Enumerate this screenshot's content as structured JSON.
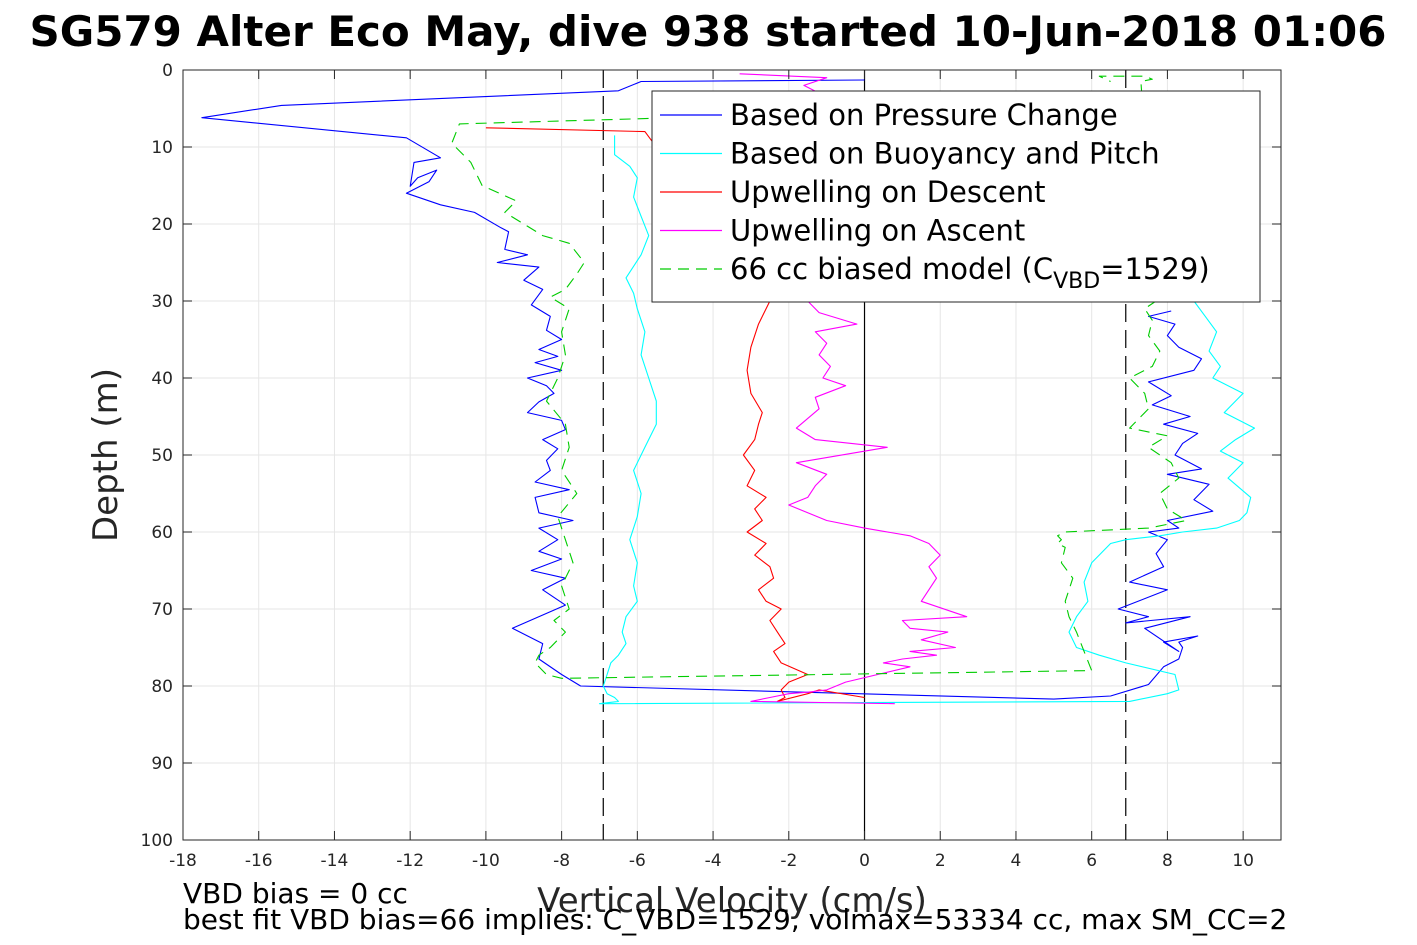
{
  "chart_data": {
    "type": "line",
    "title": "SG579 Alter Eco May, dive 938 started 10-Jun-2018 01:06",
    "xlabel": "Vertical Velocity (cm/s)",
    "ylabel": "Depth (m)",
    "xlim": [
      -18,
      11
    ],
    "ylim": [
      0,
      100
    ],
    "y_reversed": true,
    "grid": true,
    "x_ticks": [
      -18,
      -16,
      -14,
      -12,
      -10,
      -8,
      -6,
      -4,
      -2,
      0,
      2,
      4,
      6,
      8,
      10
    ],
    "y_ticks": [
      0,
      10,
      20,
      30,
      40,
      50,
      60,
      70,
      80,
      90,
      100
    ],
    "legend_position": "top-right",
    "vertical_lines": [
      {
        "x": 0,
        "style": "solid",
        "color": "#000000"
      },
      {
        "x": -6.9,
        "style": "dashed",
        "color": "#000000"
      },
      {
        "x": 6.9,
        "style": "dashed",
        "color": "#000000"
      }
    ],
    "series": [
      {
        "name": "Based on Pressure Change",
        "color": "#0000ff",
        "dash": "",
        "x": [
          0,
          -5.9,
          -6.5,
          -15.4,
          -17.5,
          -12.1,
          -11.2,
          -11.9,
          -12.0,
          -11.8,
          -11.3,
          -11.5,
          -12.1,
          -11.2,
          -10.3,
          -9.6,
          -9.4,
          -9.5,
          -8.9,
          -9.7,
          -8.6,
          -9.0,
          -8.5,
          -8.8,
          -8.3,
          -8.4,
          -8.0,
          -8.6,
          -8.1,
          -8.7,
          -8.0,
          -8.9,
          -8.4,
          -8.2,
          -8.6,
          -8.9,
          -8.0,
          -7.9,
          -8.5,
          -8.1,
          -8.4,
          -8.3,
          -8.7,
          -7.8,
          -8.7,
          -8.6,
          -7.7,
          -8.6,
          -8.1,
          -8.6,
          -8.0,
          -8.8,
          -7.9,
          -8.5,
          -7.9,
          -9.3,
          -8.5,
          -8.6,
          -8.0,
          -7.5,
          5.0,
          6.5,
          7.5,
          7.9,
          8.3,
          8.4,
          8.3,
          8.8,
          7.9,
          8.3,
          7.4,
          8.6,
          6.9,
          7.5,
          6.7,
          8.0,
          7.0,
          7.9,
          7.7,
          8.0,
          7.5,
          8.3,
          8.0,
          9.2,
          8.7,
          9.1,
          8.0,
          8.9,
          8.2,
          8.4,
          8.8,
          7.9,
          8.6,
          7.6,
          8.1,
          7.5,
          8.7,
          8.9,
          8.3,
          8.0,
          8.2,
          7.5,
          8.1
        ],
        "y": [
          1.3,
          1.5,
          2.7,
          4.6,
          6.2,
          8.8,
          11.4,
          12.0,
          15.1,
          14.0,
          13.0,
          14.5,
          16.0,
          17.5,
          18.5,
          20.5,
          21.0,
          23.3,
          24.0,
          25.0,
          25.6,
          27.3,
          28.5,
          30.5,
          32.0,
          33.8,
          35.0,
          36.3,
          37.2,
          38.0,
          39.0,
          40.0,
          41.0,
          42.0,
          43.1,
          44.5,
          45.5,
          46.7,
          48.0,
          49.2,
          50.7,
          52.0,
          53.5,
          54.5,
          55.5,
          57.5,
          58.5,
          59.5,
          61.0,
          62.5,
          63.5,
          65.0,
          66.0,
          67.5,
          69.5,
          72.5,
          74.5,
          76.5,
          78.5,
          80.0,
          81.7,
          81.3,
          79.8,
          77.5,
          76.5,
          75.0,
          74.3,
          73.5,
          74.3,
          75.5,
          72.5,
          71.0,
          71.8,
          71.0,
          70.0,
          67.5,
          66.5,
          64.5,
          62.8,
          61.0,
          60.0,
          59.5,
          58.5,
          57.3,
          55.8,
          53.8,
          52.5,
          51.8,
          50.0,
          48.5,
          47.2,
          46.0,
          45.0,
          43.5,
          42.3,
          40.5,
          39.0,
          37.5,
          36.0,
          34.5,
          33.0,
          32.0,
          31.3
        ]
      },
      {
        "name": "Based on Buoyancy and Pitch",
        "color": "#00ffff",
        "dash": "",
        "x": [
          -6.6,
          -6.6,
          -6.2,
          -6.0,
          -6.1,
          -5.9,
          -5.7,
          -5.9,
          -6.3,
          -6.1,
          -6.0,
          -5.8,
          -5.9,
          -5.7,
          -5.5,
          -5.5,
          -5.8,
          -6.1,
          -5.9,
          -6.0,
          -6.2,
          -6.0,
          -6.1,
          -6.0,
          -6.3,
          -6.4,
          -6.3,
          -6.5,
          -6.7,
          -6.8,
          -6.9,
          -6.8,
          -6.6,
          -6.5,
          -7.0,
          7.0,
          8.0,
          8.3,
          8.2,
          6.9,
          6.2,
          5.6,
          5.4,
          5.6,
          5.9,
          5.8,
          6.0,
          6.5,
          6.9,
          7.8,
          8.4,
          9.3,
          9.9,
          10.1,
          10.2,
          9.6,
          10.0,
          9.4,
          9.8,
          10.3,
          9.5,
          10.0,
          9.2,
          9.4,
          9.1,
          9.3,
          9.0,
          8.7
        ],
        "y": [
          8.5,
          11.0,
          12.5,
          14.0,
          16.5,
          19.0,
          21.5,
          24.0,
          27.0,
          29.0,
          31.0,
          34.0,
          37.0,
          40.0,
          43.0,
          46.0,
          49.0,
          52.0,
          55.0,
          58.0,
          61.0,
          64.0,
          67.0,
          69.0,
          71.0,
          73.0,
          74.5,
          76.0,
          77.0,
          78.5,
          80.0,
          81.0,
          81.5,
          82.0,
          82.3,
          82.0,
          81.0,
          80.5,
          78.5,
          77.0,
          76.0,
          75.0,
          73.0,
          71.0,
          69.0,
          66.5,
          64.0,
          61.5,
          61.0,
          60.5,
          60.0,
          59.5,
          58.5,
          57.5,
          55.5,
          53.0,
          51.0,
          49.5,
          48.0,
          46.5,
          44.5,
          42.0,
          40.0,
          38.5,
          36.5,
          34.0,
          32.0,
          30.0
        ]
      },
      {
        "name": "Upwelling on Descent",
        "color": "#ff0000",
        "dash": "",
        "x": [
          -10.0,
          -5.8,
          -2.5,
          -2.8,
          -3.0,
          -3.1,
          -3.0,
          -2.7,
          -2.8,
          -2.9,
          -3.2,
          -2.9,
          -3.1,
          -2.6,
          -2.9,
          -2.7,
          -3.1,
          -2.6,
          -2.9,
          -2.5,
          -2.4,
          -2.8,
          -2.6,
          -2.2,
          -2.5,
          -2.3,
          -2.1,
          -2.4,
          -2.2,
          -1.5,
          -2.0,
          -2.2,
          -2.1,
          -2.3,
          -1.5,
          -1.2,
          0.0
        ],
        "y": [
          7.5,
          8.0,
          30.0,
          33.0,
          36.0,
          39.0,
          42.0,
          44.5,
          46.0,
          48.0,
          50.0,
          52.0,
          54.0,
          55.5,
          57.0,
          58.5,
          60.0,
          61.5,
          63.0,
          64.5,
          66.0,
          67.5,
          69.0,
          70.0,
          71.5,
          73.0,
          74.5,
          75.5,
          77.0,
          78.5,
          79.5,
          80.5,
          81.5,
          82.0,
          81.0,
          80.5,
          81.5
        ]
      },
      {
        "name": "Upwelling on Ascent",
        "color": "#ff00ff",
        "dash": "",
        "x": [
          -3.3,
          -1.0,
          -1.6,
          -1.2,
          -1.1,
          -1.5,
          -1.2,
          -0.2,
          -1.3,
          -1.0,
          -1.2,
          -0.9,
          -1.1,
          -0.5,
          -1.3,
          -1.2,
          -1.8,
          -1.3,
          0.6,
          -1.8,
          -1.0,
          -1.3,
          -1.5,
          -2.0,
          -1.0,
          0.0,
          1.2,
          1.7,
          2.0,
          1.7,
          1.9,
          1.5,
          2.7,
          1.0,
          1.2,
          2.2,
          1.5,
          2.4,
          1.2,
          1.9,
          1.0,
          0.5,
          1.2,
          -0.5,
          -1.0,
          -1.5,
          -2.0,
          -2.5,
          -3.0,
          0.8
        ],
        "y": [
          0.5,
          1.0,
          2.0,
          3.0,
          3.5,
          30.0,
          31.5,
          33.0,
          34.0,
          35.5,
          37.0,
          38.5,
          40.0,
          41.0,
          42.5,
          44.0,
          46.5,
          48.0,
          49.0,
          51.0,
          52.5,
          54.0,
          55.5,
          56.5,
          58.5,
          59.5,
          60.5,
          61.5,
          63.0,
          64.5,
          66.0,
          69.0,
          71.0,
          71.5,
          72.5,
          73.0,
          74.0,
          75.0,
          75.5,
          76.0,
          76.5,
          77.0,
          77.5,
          79.5,
          80.5,
          80.8,
          81.0,
          81.5,
          82.0,
          82.3
        ]
      },
      {
        "name": "66 cc biased model",
        "legend_label": {
          "prefix": "66 cc biased model (C",
          "subscript": "VBD",
          "suffix": "=1529)"
        },
        "color": "#00cc00",
        "dash": "11 7",
        "x": [
          0,
          -10.7,
          -10.9,
          -10.4,
          -10.1,
          -9.2,
          -9.5,
          -9.0,
          -8.5,
          -7.8,
          -7.4,
          -7.6,
          -7.9,
          -8.3,
          -7.8,
          -8.0,
          -7.9,
          -8.1,
          -8.4,
          -7.9,
          -7.8,
          -8.0,
          -7.6,
          -8.1,
          -7.9,
          -7.7,
          -8.0,
          -7.8,
          -8.2,
          -7.9,
          -8.1,
          -8.3,
          -8.6,
          -8.7,
          -8.4,
          -8.0,
          6.0,
          5.8,
          5.6,
          5.4,
          5.3,
          5.5,
          5.2,
          5.3,
          5.1,
          5.2,
          5.1,
          5.3,
          7.5,
          8.5,
          8.0,
          7.8,
          8.3,
          8.1,
          7.5,
          8.0,
          7.0,
          7.5,
          7.4,
          7.0,
          7.6,
          7.8,
          7.5,
          7.6,
          7.4,
          7.7,
          7.3,
          7.6,
          7.4,
          6.2,
          6.5
        ],
        "y": [
          5.5,
          7.0,
          9.5,
          12.0,
          15.0,
          17.0,
          18.5,
          20.0,
          21.5,
          22.5,
          25.0,
          26.5,
          28.5,
          29.5,
          31.0,
          34.0,
          37.0,
          40.0,
          43.0,
          46.0,
          49.0,
          52.0,
          55.0,
          58.0,
          61.0,
          64.0,
          67.0,
          70.0,
          71.5,
          73.0,
          74.0,
          75.0,
          76.0,
          77.0,
          78.5,
          79.0,
          78.0,
          75.5,
          73.0,
          71.0,
          69.0,
          66.0,
          64.0,
          62.0,
          61.5,
          61.0,
          60.5,
          60.0,
          59.5,
          58.5,
          57.0,
          55.0,
          53.0,
          51.0,
          49.0,
          47.5,
          46.5,
          44.0,
          42.0,
          40.0,
          38.5,
          36.5,
          34.5,
          32.5,
          31.0,
          30.0,
          1.5,
          1.2,
          0.8,
          0.8,
          1.5
        ]
      }
    ]
  },
  "notes": {
    "line1": "VBD bias = 0 cc",
    "line2": "best fit VBD bias=66 implies: C_VBD=1529, volmax=53334 cc, max SM_CC=2"
  }
}
